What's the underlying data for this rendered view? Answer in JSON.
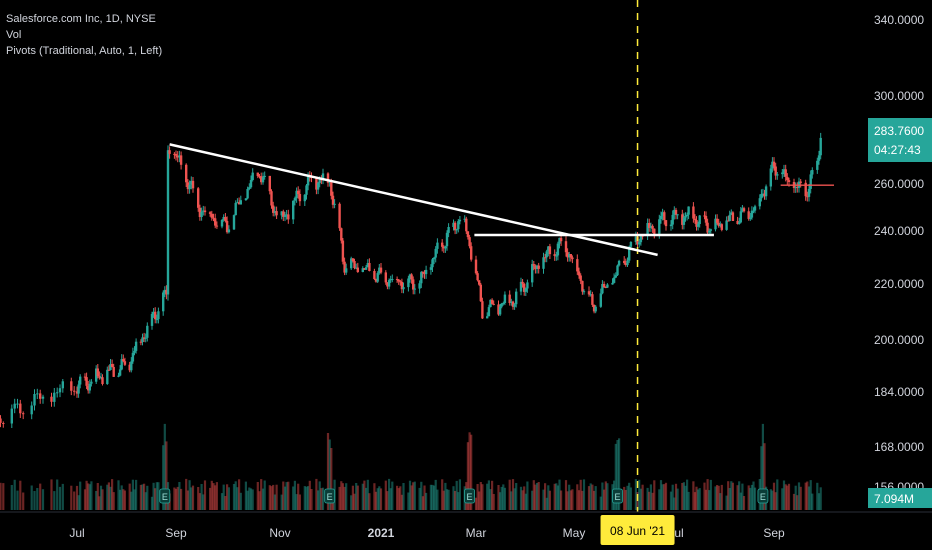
{
  "header": {
    "symbol_line": "Salesforce.com Inc, 1D, NYSE",
    "volume_label": "Vol",
    "pivots_label": "Pivots (Traditional, Auto, 1, Left)"
  },
  "price_axis": {
    "ticks": [
      "340.0000",
      "300.0000",
      "260.0000",
      "240.0000",
      "220.0000",
      "200.0000",
      "184.0000",
      "168.0000",
      "156.0000"
    ],
    "last_price": "283.7600",
    "countdown": "04:27:43",
    "volume_value": "7.094M"
  },
  "time_axis": {
    "labels": [
      "Jul",
      "Sep",
      "Nov",
      "2021",
      "Mar",
      "May",
      "Jul",
      "Sep"
    ],
    "highlight_label": "08 Jun '21"
  },
  "colors": {
    "background": "#000000",
    "up": "#26a69a",
    "down": "#ef5350",
    "highlight": "#ffeb3b",
    "line": "#ffffff"
  },
  "event_icon": "E",
  "chart_data": {
    "type": "candlestick",
    "symbol": "Salesforce.com Inc",
    "interval": "1D",
    "exchange": "NYSE",
    "key_prices": [
      {
        "date": "2020-06-01",
        "price": 176
      },
      {
        "date": "2020-07-01",
        "price": 186
      },
      {
        "date": "2020-08-01",
        "price": 192
      },
      {
        "date": "2020-08-26",
        "price": 216
      },
      {
        "date": "2020-08-27",
        "price": 275
      },
      {
        "date": "2020-09-01",
        "price": 272
      },
      {
        "date": "2020-09-15",
        "price": 250
      },
      {
        "date": "2020-10-01",
        "price": 242
      },
      {
        "date": "2020-10-20",
        "price": 266
      },
      {
        "date": "2020-11-01",
        "price": 244
      },
      {
        "date": "2020-11-20",
        "price": 262
      },
      {
        "date": "2020-12-01",
        "price": 262
      },
      {
        "date": "2020-12-10",
        "price": 227
      },
      {
        "date": "2021-01-01",
        "price": 223
      },
      {
        "date": "2021-01-25",
        "price": 220
      },
      {
        "date": "2021-02-05",
        "price": 232
      },
      {
        "date": "2021-02-20",
        "price": 247
      },
      {
        "date": "2021-02-26",
        "price": 233
      },
      {
        "date": "2021-03-05",
        "price": 210
      },
      {
        "date": "2021-03-25",
        "price": 215
      },
      {
        "date": "2021-04-10",
        "price": 228
      },
      {
        "date": "2021-04-25",
        "price": 236
      },
      {
        "date": "2021-05-01",
        "price": 228
      },
      {
        "date": "2021-05-12",
        "price": 212
      },
      {
        "date": "2021-05-25",
        "price": 222
      },
      {
        "date": "2021-06-08",
        "price": 238
      },
      {
        "date": "2021-06-20",
        "price": 244
      },
      {
        "date": "2021-07-10",
        "price": 247
      },
      {
        "date": "2021-07-25",
        "price": 241
      },
      {
        "date": "2021-08-10",
        "price": 246
      },
      {
        "date": "2021-08-20",
        "price": 250
      },
      {
        "date": "2021-09-01",
        "price": 268
      },
      {
        "date": "2021-09-10",
        "price": 260
      },
      {
        "date": "2021-09-20",
        "price": 256
      },
      {
        "date": "2021-09-27",
        "price": 270
      },
      {
        "date": "2021-09-29",
        "price": 283.76
      }
    ],
    "last_price": 283.76,
    "last_volume": "7.094M",
    "trendlines": [
      {
        "from": {
          "date": "2020-08-28",
          "price": 278
        },
        "to": {
          "date": "2021-06-20",
          "price": 231
        }
      },
      {
        "from": {
          "date": "2021-02-28",
          "price": 238.5
        },
        "to": {
          "date": "2021-07-25",
          "price": 238.5
        }
      }
    ],
    "marker_date": "2021-06-08",
    "pivot_level": 259.5,
    "y_ticks": [
      340,
      300,
      260,
      240,
      220,
      200,
      184,
      168,
      156
    ],
    "ylim": [
      150,
      350
    ],
    "y_scale": "log",
    "x_ticks": [
      "2020-07-01",
      "2020-09-01",
      "2020-11-01",
      "2021-01-01",
      "2021-03-01",
      "2021-05-01",
      "2021-07-01",
      "2021-09-01"
    ],
    "xlim": [
      "2020-06-01",
      "2021-10-31"
    ],
    "earnings_dates": [
      "2020-08-25",
      "2020-12-01",
      "2021-02-25",
      "2021-05-27",
      "2021-08-25"
    ]
  }
}
